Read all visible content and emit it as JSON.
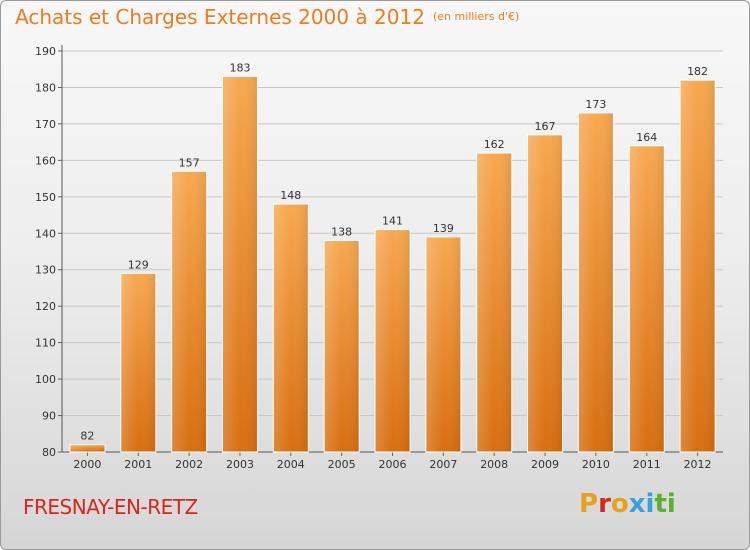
{
  "header": {
    "title": "Achats et Charges Externes 2000 à 2012",
    "subtitle": "(en milliers d'€)"
  },
  "footer": {
    "commune": "FRESNAY-EN-RETZ",
    "logo_text": "Proxiti"
  },
  "colors": {
    "title": "#f07a1e",
    "commune": "#d9261c",
    "bar_top": "#f7a850",
    "bar_bottom": "#d86e10",
    "logo_letters": [
      "#e8a020",
      "#d9261c",
      "#e8a020",
      "#3aa0dc",
      "#3aa0dc",
      "#5cb030",
      "#5cb030"
    ]
  },
  "chart_data": {
    "type": "bar",
    "categories": [
      "2000",
      "2001",
      "2002",
      "2003",
      "2004",
      "2005",
      "2006",
      "2007",
      "2008",
      "2009",
      "2010",
      "2011",
      "2012"
    ],
    "values": [
      82,
      129,
      157,
      183,
      148,
      138,
      141,
      139,
      162,
      167,
      173,
      164,
      182
    ],
    "title": "Achats et Charges Externes 2000 à 2012",
    "subtitle": "(en milliers d'€)",
    "xlabel": "",
    "ylabel": "",
    "ylim": [
      80,
      190
    ],
    "yticks": [
      80,
      90,
      100,
      110,
      120,
      130,
      140,
      150,
      160,
      170,
      180,
      190
    ],
    "grid": true
  }
}
